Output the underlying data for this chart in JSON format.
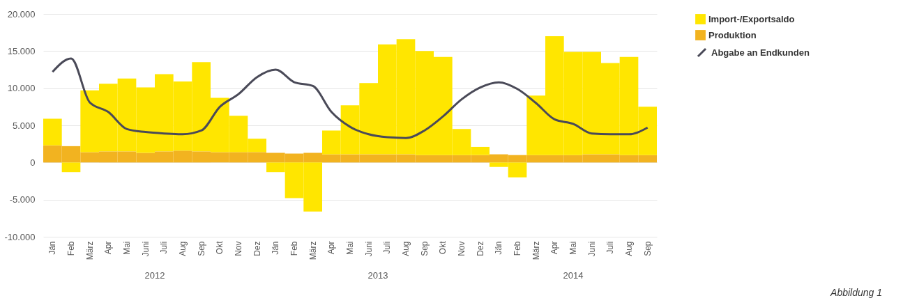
{
  "chart_data": {
    "type": "bar",
    "stacked": true,
    "categories": [
      "Jän",
      "Feb",
      "März",
      "Apr",
      "Mai",
      "Juni",
      "Juli",
      "Aug",
      "Sep",
      "Okt",
      "Nov",
      "Dez",
      "Jän",
      "Feb",
      "März",
      "Apr",
      "Mai",
      "Juni",
      "Juli",
      "Aug",
      "Sep",
      "Okt",
      "Nov",
      "Dez",
      "Jän",
      "Feb",
      "März",
      "Apr",
      "Mai",
      "Juni",
      "Juli",
      "Aug",
      "Sep"
    ],
    "series": [
      {
        "name": "Produktion",
        "color": "#f2b320",
        "values": [
          2300,
          2200,
          1400,
          1500,
          1500,
          1300,
          1500,
          1600,
          1500,
          1400,
          1400,
          1400,
          1300,
          1200,
          1300,
          1100,
          1100,
          1100,
          1100,
          1100,
          1000,
          1000,
          1000,
          1000,
          1100,
          1000,
          1000,
          1000,
          1000,
          1100,
          1100,
          1000,
          1000
        ]
      },
      {
        "name": "Import-/Exportsaldo",
        "color": "#ffe600",
        "values": [
          3600,
          -1300,
          8300,
          9100,
          9800,
          8800,
          10400,
          9300,
          12000,
          7300,
          4900,
          1800,
          -1300,
          -4800,
          -6600,
          3200,
          6600,
          9600,
          14800,
          15500,
          14000,
          13200,
          3500,
          1100,
          -600,
          -2000,
          8000,
          16000,
          13900,
          13800,
          12300,
          13200,
          6500
        ]
      },
      {
        "name": "Abgabe an Endkunden",
        "type": "line",
        "color": "#4a4a58",
        "values": [
          12200,
          14000,
          8100,
          6800,
          4500,
          4100,
          3900,
          3800,
          4300,
          7500,
          9200,
          11500,
          12500,
          10800,
          10300,
          6800,
          4800,
          3800,
          3400,
          3300,
          4300,
          6200,
          8500,
          10100,
          10800,
          9900,
          8000,
          5800,
          5200,
          3900,
          3800,
          3800,
          4700
        ]
      }
    ],
    "ylim": [
      -10000,
      20000
    ],
    "yticks": [
      {
        "value": -10000,
        "label": "-10.000"
      },
      {
        "value": -5000,
        "label": "-5.000"
      },
      0,
      {
        "value": 5000,
        "label": "5.000"
      },
      {
        "value": 10000,
        "label": "10.000"
      },
      {
        "value": 15000,
        "label": "15.000"
      },
      {
        "value": 20000,
        "label": "20.000"
      }
    ],
    "grid": "y",
    "legend": "top right",
    "annotations": [
      "2012",
      "2013",
      "2014",
      "Abbildung 1"
    ]
  }
}
